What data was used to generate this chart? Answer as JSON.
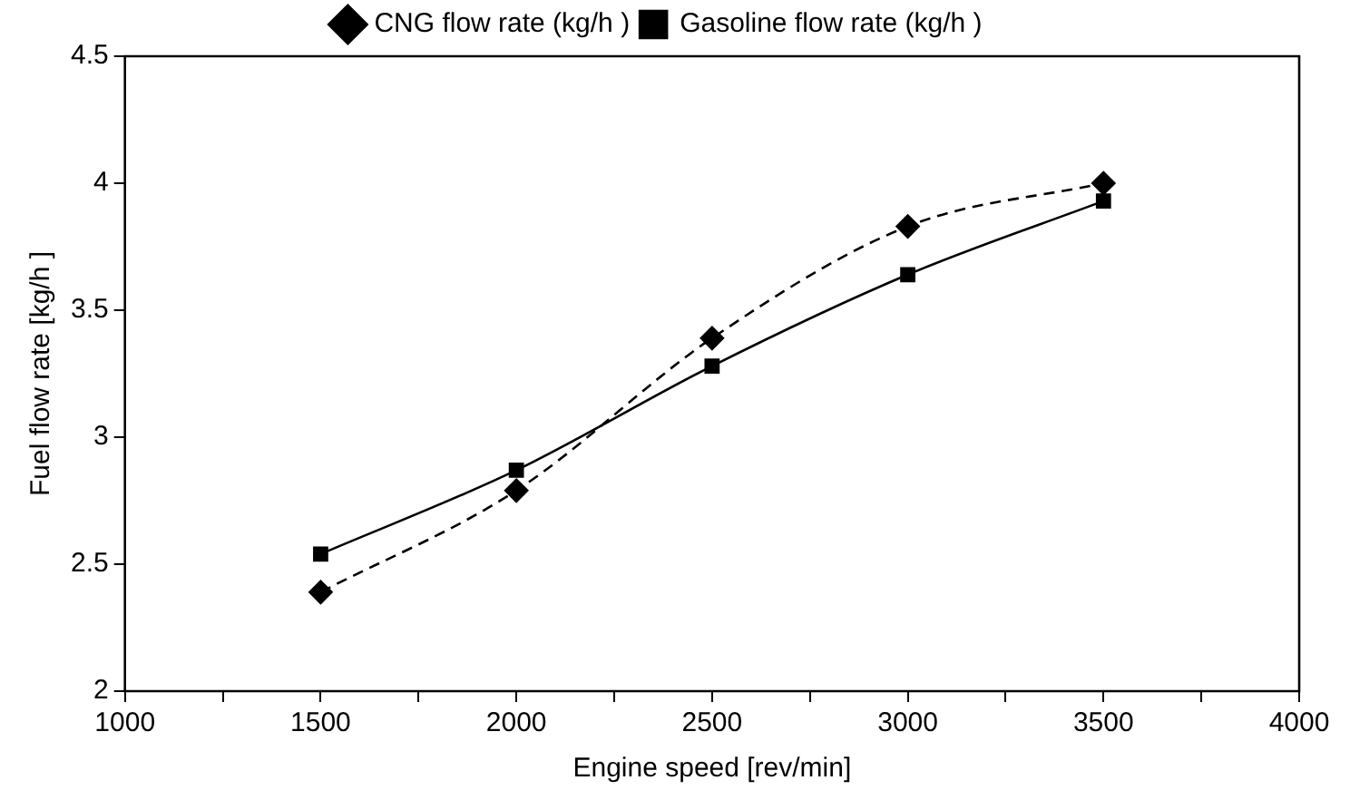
{
  "chart_data": {
    "type": "line",
    "xlabel": "Engine speed [rev/min]",
    "ylabel": "Fuel flow rate [kg/h ]",
    "x": [
      1500,
      2000,
      2500,
      3000,
      3500
    ],
    "series": [
      {
        "name": "CNG flow rate (kg/h )",
        "color": "#000000",
        "values": [
          2.39,
          2.79,
          3.39,
          3.83,
          4.0
        ],
        "marker": "diamond",
        "line_style": "dashed"
      },
      {
        "name": "Gasoline flow rate (kg/h )",
        "color": "#000000",
        "values": [
          2.54,
          2.87,
          3.28,
          3.64,
          3.93
        ],
        "marker": "square",
        "line_style": "solid"
      }
    ],
    "xlim": [
      1000,
      4000
    ],
    "xticks": [
      1000,
      {
        "value": 1250,
        "label": null
      },
      1500,
      {
        "value": 1750,
        "label": null
      },
      2000,
      {
        "value": 2250,
        "label": null
      },
      2500,
      {
        "value": 2750,
        "label": null
      },
      3000,
      {
        "value": 3250,
        "label": null
      },
      3500,
      {
        "value": 3750,
        "label": null
      },
      4000
    ],
    "ylim": [
      2,
      4.5
    ],
    "yticks": [
      2,
      2.5,
      3,
      3.5,
      4,
      4.5
    ],
    "grid": false,
    "legend": "top"
  }
}
